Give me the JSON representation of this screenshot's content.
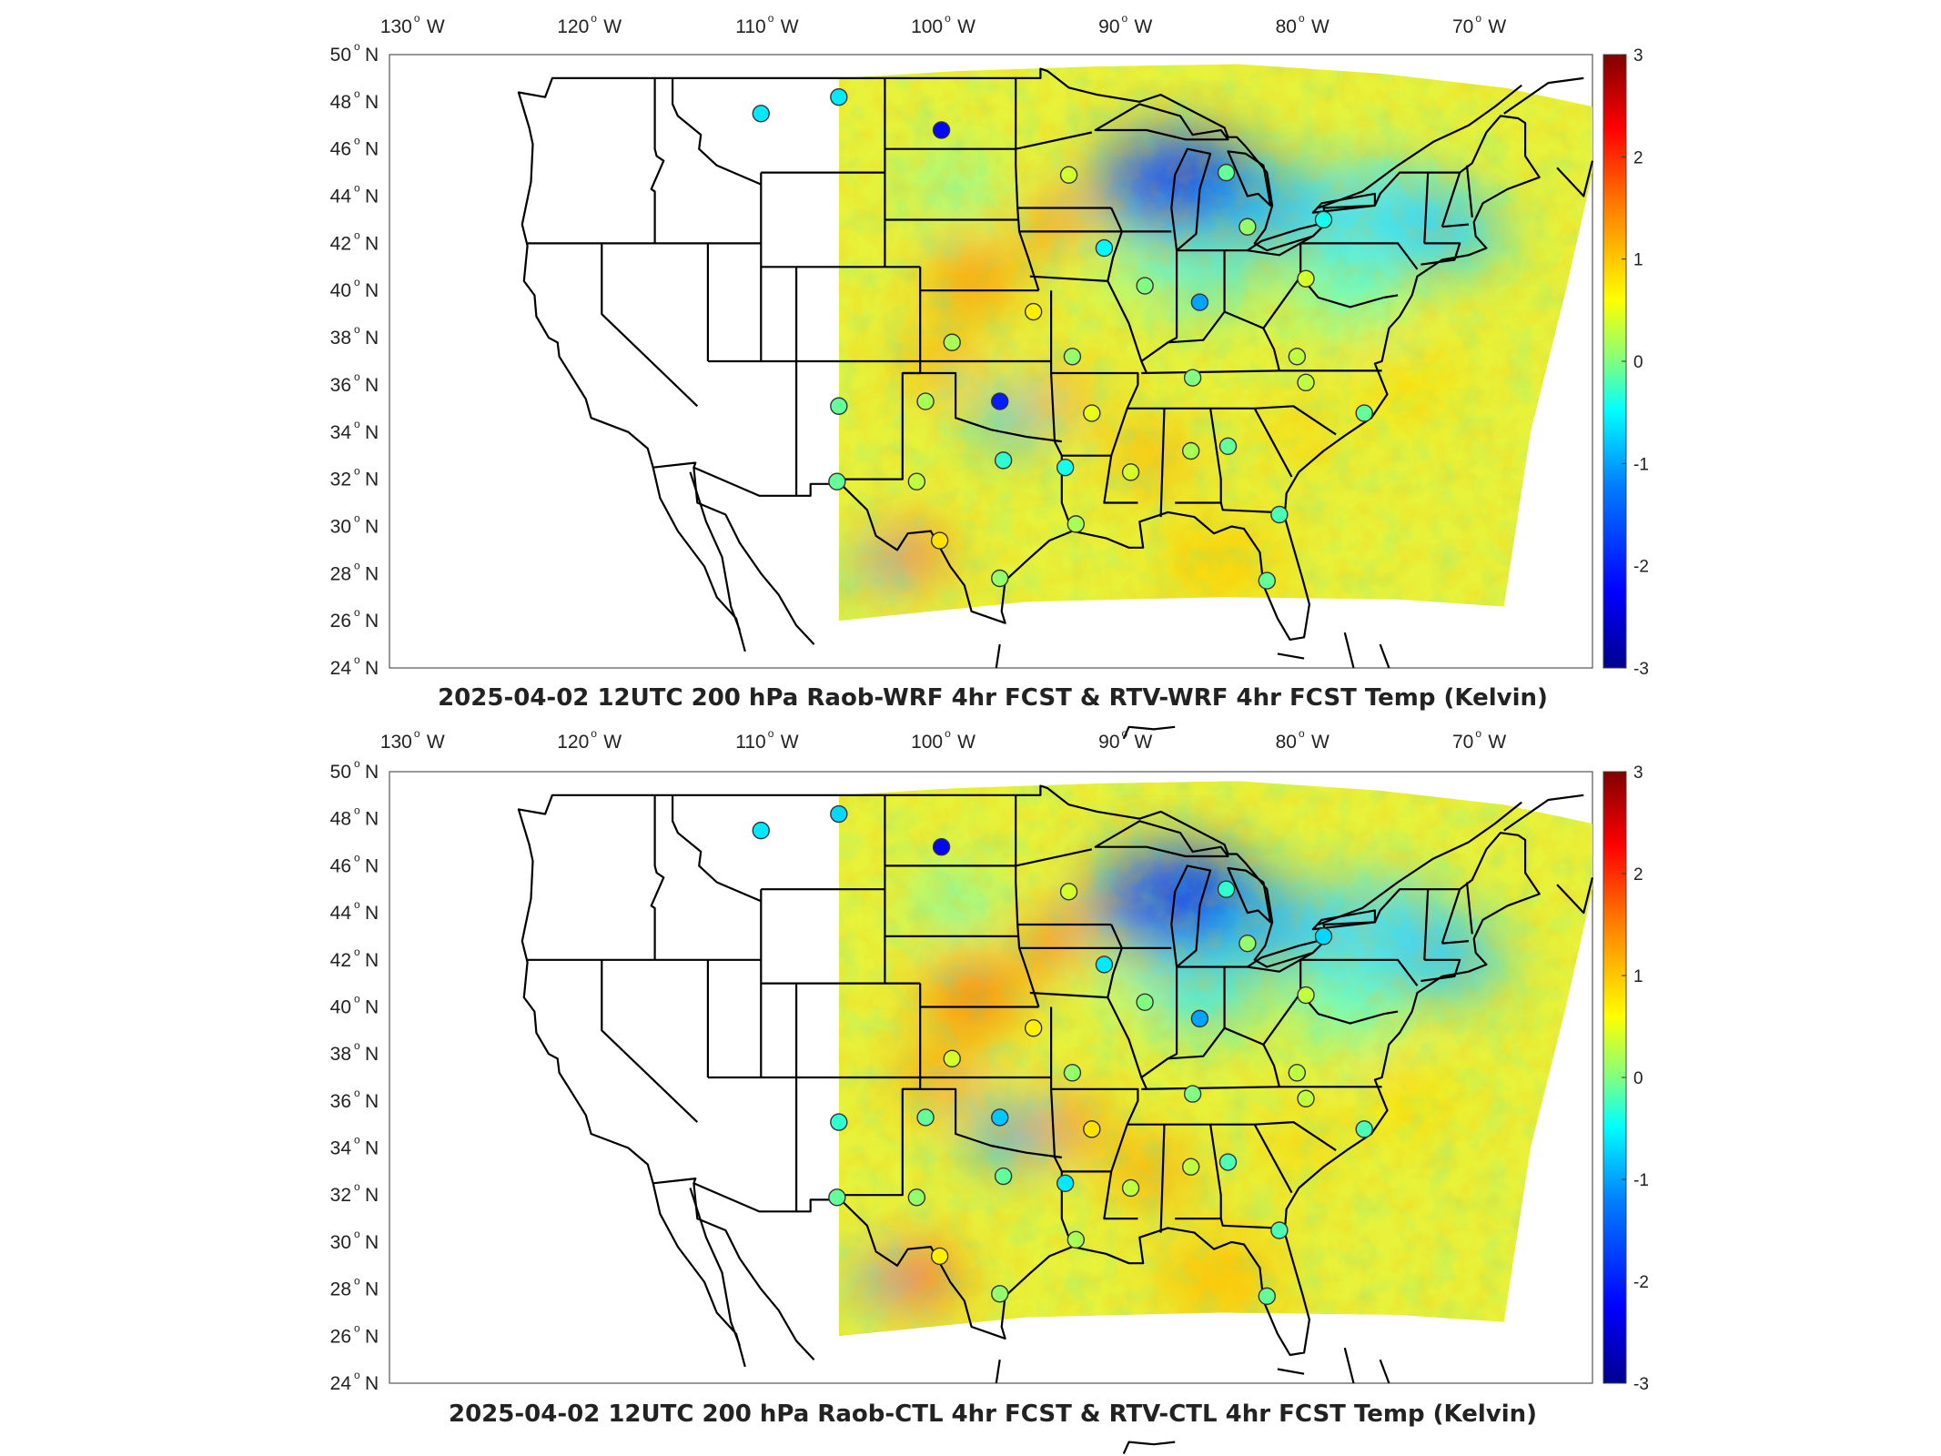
{
  "panels": [
    {
      "id": "wrf",
      "title": "2025-04-02 12UTC 200 hPa Raob-WRF 4hr FCST & RTV-WRF 4hr FCST Temp (Kelvin)",
      "lon_labels": [
        "130",
        "120",
        "110",
        "100",
        "90",
        "80",
        "70"
      ],
      "lon_values": [
        -130,
        -120,
        -110,
        -100,
        -90,
        -80,
        -70
      ],
      "lon_hemisphere": "W",
      "lat_labels": [
        "50",
        "48",
        "46",
        "44",
        "42",
        "40",
        "38",
        "36",
        "34",
        "32",
        "30",
        "28",
        "26",
        "24"
      ],
      "lat_values": [
        50,
        48,
        46,
        44,
        42,
        40,
        38,
        36,
        34,
        32,
        30,
        28,
        26,
        24
      ],
      "lat_hemisphere": "N",
      "colorbar_ticks": [
        "3",
        "2",
        "1",
        "0",
        "-1",
        "-2",
        "-3"
      ],
      "stations": [
        {
          "lon": -111.0,
          "lat": 47.5,
          "value": -0.6
        },
        {
          "lon": -106.6,
          "lat": 48.2,
          "value": -0.6
        },
        {
          "lon": -100.8,
          "lat": 46.8,
          "value": -2.2
        },
        {
          "lon": -93.6,
          "lat": 44.9,
          "value": 0.4
        },
        {
          "lon": -84.7,
          "lat": 45.0,
          "value": -0.1
        },
        {
          "lon": -83.5,
          "lat": 42.7,
          "value": 0.1
        },
        {
          "lon": -79.2,
          "lat": 43.0,
          "value": -0.4
        },
        {
          "lon": -91.6,
          "lat": 41.8,
          "value": -0.5
        },
        {
          "lon": -89.3,
          "lat": 40.2,
          "value": 0.0
        },
        {
          "lon": -86.2,
          "lat": 39.5,
          "value": -1.0
        },
        {
          "lon": -80.2,
          "lat": 40.5,
          "value": 0.4
        },
        {
          "lon": -95.6,
          "lat": 39.1,
          "value": 0.7
        },
        {
          "lon": -100.2,
          "lat": 37.8,
          "value": 0.2
        },
        {
          "lon": -93.4,
          "lat": 37.2,
          "value": 0.1
        },
        {
          "lon": -86.6,
          "lat": 36.3,
          "value": 0.0
        },
        {
          "lon": -80.7,
          "lat": 37.2,
          "value": 0.3
        },
        {
          "lon": -80.2,
          "lat": 36.1,
          "value": 0.3
        },
        {
          "lon": -76.9,
          "lat": 34.8,
          "value": -0.1
        },
        {
          "lon": -106.6,
          "lat": 35.1,
          "value": -0.1
        },
        {
          "lon": -101.7,
          "lat": 35.3,
          "value": 0.2
        },
        {
          "lon": -97.5,
          "lat": 35.3,
          "value": -2.0
        },
        {
          "lon": -92.3,
          "lat": 34.8,
          "value": 0.5
        },
        {
          "lon": -97.3,
          "lat": 32.8,
          "value": -0.3
        },
        {
          "lon": -93.8,
          "lat": 32.5,
          "value": -0.4
        },
        {
          "lon": -90.1,
          "lat": 32.3,
          "value": 0.4
        },
        {
          "lon": -86.7,
          "lat": 33.2,
          "value": 0.2
        },
        {
          "lon": -84.6,
          "lat": 33.4,
          "value": -0.1
        },
        {
          "lon": -106.7,
          "lat": 31.9,
          "value": -0.1
        },
        {
          "lon": -102.2,
          "lat": 31.9,
          "value": 0.3
        },
        {
          "lon": -93.2,
          "lat": 30.1,
          "value": 0.2
        },
        {
          "lon": -81.7,
          "lat": 30.5,
          "value": -0.2
        },
        {
          "lon": -100.9,
          "lat": 29.4,
          "value": 0.8
        },
        {
          "lon": -97.5,
          "lat": 27.8,
          "value": 0.1
        },
        {
          "lon": -82.4,
          "lat": 27.7,
          "value": -0.1
        }
      ]
    },
    {
      "id": "ctl",
      "title": "2025-04-02 12UTC 200 hPa Raob-CTL 4hr FCST & RTV-CTL 4hr FCST Temp (Kelvin)",
      "lon_labels": [
        "130",
        "120",
        "110",
        "100",
        "90",
        "80",
        "70"
      ],
      "lon_values": [
        -130,
        -120,
        -110,
        -100,
        -90,
        -80,
        -70
      ],
      "lon_hemisphere": "W",
      "lat_labels": [
        "50",
        "48",
        "46",
        "44",
        "42",
        "40",
        "38",
        "36",
        "34",
        "32",
        "30",
        "28",
        "26",
        "24"
      ],
      "lat_values": [
        50,
        48,
        46,
        44,
        42,
        40,
        38,
        36,
        34,
        32,
        30,
        28,
        26,
        24
      ],
      "lat_hemisphere": "N",
      "colorbar_ticks": [
        "3",
        "2",
        "1",
        "0",
        "-1",
        "-2",
        "-3"
      ],
      "stations": [
        {
          "lon": -111.0,
          "lat": 47.5,
          "value": -0.6
        },
        {
          "lon": -106.6,
          "lat": 48.2,
          "value": -0.7
        },
        {
          "lon": -100.8,
          "lat": 46.8,
          "value": -2.2
        },
        {
          "lon": -93.6,
          "lat": 44.9,
          "value": 0.4
        },
        {
          "lon": -84.7,
          "lat": 45.0,
          "value": -0.3
        },
        {
          "lon": -83.5,
          "lat": 42.7,
          "value": 0.1
        },
        {
          "lon": -79.2,
          "lat": 43.0,
          "value": -0.7
        },
        {
          "lon": -91.6,
          "lat": 41.8,
          "value": -0.6
        },
        {
          "lon": -89.3,
          "lat": 40.2,
          "value": 0.0
        },
        {
          "lon": -86.2,
          "lat": 39.5,
          "value": -1.0
        },
        {
          "lon": -80.2,
          "lat": 40.5,
          "value": 0.3
        },
        {
          "lon": -95.6,
          "lat": 39.1,
          "value": 0.7
        },
        {
          "lon": -100.2,
          "lat": 37.8,
          "value": 0.4
        },
        {
          "lon": -93.4,
          "lat": 37.2,
          "value": 0.1
        },
        {
          "lon": -86.6,
          "lat": 36.3,
          "value": 0.0
        },
        {
          "lon": -80.7,
          "lat": 37.2,
          "value": 0.3
        },
        {
          "lon": -80.2,
          "lat": 36.1,
          "value": 0.3
        },
        {
          "lon": -76.9,
          "lat": 34.8,
          "value": -0.2
        },
        {
          "lon": -106.6,
          "lat": 35.1,
          "value": -0.3
        },
        {
          "lon": -101.7,
          "lat": 35.3,
          "value": -0.1
        },
        {
          "lon": -97.5,
          "lat": 35.3,
          "value": -0.8
        },
        {
          "lon": -92.3,
          "lat": 34.8,
          "value": 0.8
        },
        {
          "lon": -97.3,
          "lat": 32.8,
          "value": -0.1
        },
        {
          "lon": -93.8,
          "lat": 32.5,
          "value": -0.6
        },
        {
          "lon": -90.1,
          "lat": 32.3,
          "value": 0.3
        },
        {
          "lon": -86.7,
          "lat": 33.2,
          "value": 0.3
        },
        {
          "lon": -84.6,
          "lat": 33.4,
          "value": -0.2
        },
        {
          "lon": -106.7,
          "lat": 31.9,
          "value": -0.1
        },
        {
          "lon": -102.2,
          "lat": 31.9,
          "value": 0.1
        },
        {
          "lon": -93.2,
          "lat": 30.1,
          "value": 0.2
        },
        {
          "lon": -81.7,
          "lat": 30.5,
          "value": -0.2
        },
        {
          "lon": -100.9,
          "lat": 29.4,
          "value": 0.7
        },
        {
          "lon": -97.5,
          "lat": 27.8,
          "value": 0.1
        },
        {
          "lon": -82.4,
          "lat": 27.7,
          "value": -0.1
        }
      ]
    }
  ],
  "colormap": [
    "#00008f",
    "#0000ff",
    "#0080ff",
    "#00ffff",
    "#80ff80",
    "#ffff00",
    "#ff8000",
    "#ff0000",
    "#800000"
  ],
  "colorbar_range": [
    -3,
    3
  ],
  "lon_range": [
    -132,
    -64
  ],
  "lat_range": [
    24,
    50
  ]
}
